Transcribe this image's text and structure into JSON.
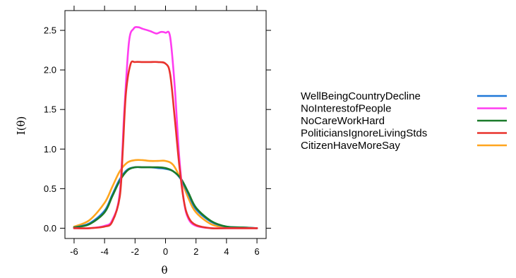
{
  "chart_data": {
    "type": "line",
    "title": "",
    "xlabel": "θ",
    "ylabel": "I(θ)",
    "xlim": [
      -6.6,
      6.6
    ],
    "ylim": [
      -0.13,
      2.75
    ],
    "xticks": [
      -6,
      -4,
      -2,
      0,
      2,
      4,
      6
    ],
    "yticks": [
      0.0,
      0.5,
      1.0,
      1.5,
      2.0,
      2.5
    ],
    "xtick_labels": [
      "-6",
      "-4",
      "-2",
      "0",
      "2",
      "4",
      "6"
    ],
    "ytick_labels": [
      "0.0",
      "0.5",
      "1.0",
      "1.5",
      "2.0",
      "2.5"
    ],
    "grid": false,
    "legend_position": "right",
    "series": [
      {
        "name": "WellBeingCountryDecline",
        "color": "#1f78d8",
        "x": [
          -6,
          -5,
          -4,
          -3.5,
          -3,
          -2.5,
          -2,
          -1.5,
          -1,
          -0.5,
          0,
          0.5,
          1,
          1.5,
          2,
          3,
          4,
          5,
          6
        ],
        "y": [
          0.01,
          0.06,
          0.22,
          0.42,
          0.62,
          0.74,
          0.77,
          0.77,
          0.77,
          0.76,
          0.75,
          0.72,
          0.62,
          0.43,
          0.24,
          0.08,
          0.02,
          0.01,
          0.0
        ]
      },
      {
        "name": "NoInterestofPeople",
        "color": "#ff3cf0",
        "x": [
          -6,
          -5,
          -4,
          -3.5,
          -3,
          -2.7,
          -2.4,
          -2.1,
          -1.8,
          -1.5,
          -1,
          -0.6,
          -0.3,
          0,
          0.3,
          0.6,
          0.9,
          1.2,
          1.5,
          2,
          3,
          4,
          6
        ],
        "y": [
          0.0,
          0.0,
          0.03,
          0.1,
          0.45,
          1.5,
          2.35,
          2.52,
          2.54,
          2.52,
          2.49,
          2.46,
          2.48,
          2.47,
          2.42,
          1.8,
          0.9,
          0.35,
          0.12,
          0.03,
          0.0,
          0.0,
          0.0
        ]
      },
      {
        "name": "NoCareWorkHard",
        "color": "#1a7a2a",
        "x": [
          -6,
          -5,
          -4,
          -3.5,
          -3,
          -2.5,
          -2,
          -1.5,
          -1,
          -0.5,
          0,
          0.5,
          1,
          1.5,
          2,
          3,
          4,
          5,
          6
        ],
        "y": [
          0.01,
          0.05,
          0.2,
          0.4,
          0.6,
          0.73,
          0.77,
          0.77,
          0.77,
          0.77,
          0.76,
          0.72,
          0.63,
          0.45,
          0.26,
          0.09,
          0.02,
          0.01,
          0.0
        ]
      },
      {
        "name": "PoliticiansIgnoreLivingStds",
        "color": "#e8322c",
        "x": [
          -6,
          -5,
          -4,
          -3.5,
          -3,
          -2.8,
          -2.6,
          -2.3,
          -2,
          -1.5,
          -1,
          -0.5,
          0,
          0.3,
          0.6,
          0.9,
          1.2,
          1.5,
          2,
          3,
          4,
          6
        ],
        "y": [
          0.0,
          0.0,
          0.02,
          0.08,
          0.4,
          1.0,
          1.7,
          2.07,
          2.1,
          2.1,
          2.1,
          2.1,
          2.08,
          1.95,
          1.4,
          0.8,
          0.35,
          0.14,
          0.04,
          0.0,
          0.0,
          0.0
        ]
      },
      {
        "name": "CitizenHaveMoreSay",
        "color": "#ffa51e",
        "x": [
          -6,
          -5,
          -4,
          -3.5,
          -3,
          -2.5,
          -2,
          -1.5,
          -1,
          -0.5,
          0,
          0.5,
          1,
          1.5,
          2,
          3,
          4,
          5,
          6
        ],
        "y": [
          0.02,
          0.1,
          0.32,
          0.52,
          0.72,
          0.83,
          0.86,
          0.86,
          0.85,
          0.85,
          0.85,
          0.8,
          0.62,
          0.38,
          0.2,
          0.05,
          0.01,
          0.0,
          0.0
        ]
      }
    ]
  }
}
